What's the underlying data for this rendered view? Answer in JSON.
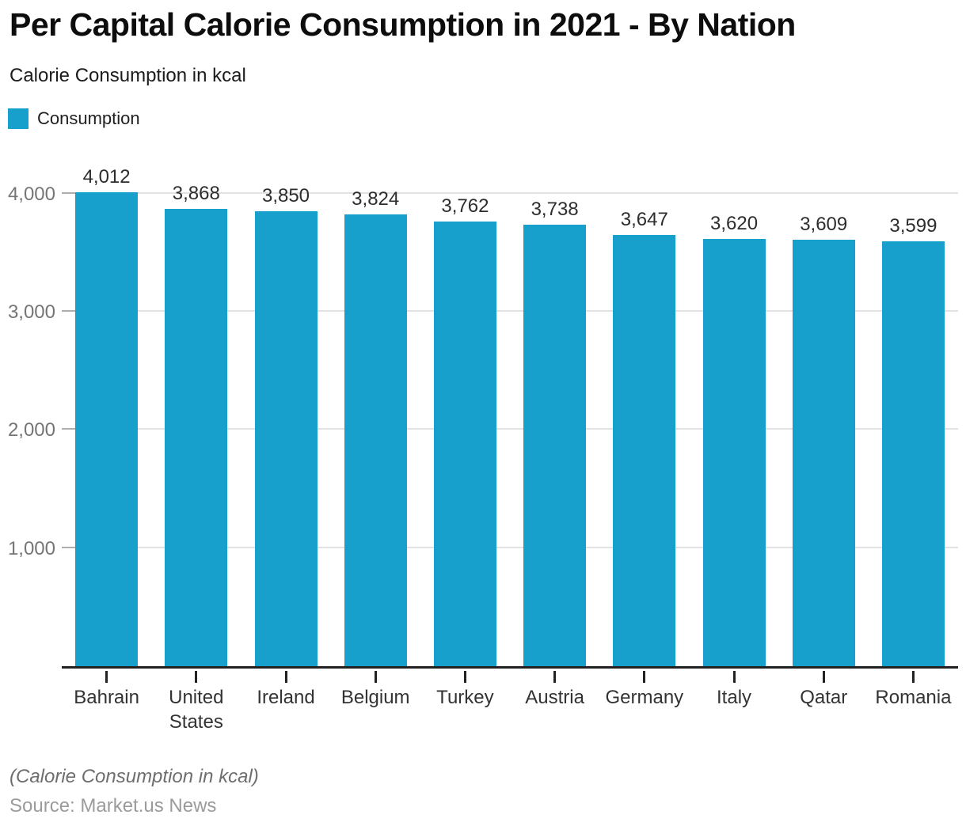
{
  "header": {
    "title": "Per Capital Calorie Consumption in 2021 - By Nation",
    "subtitle": "Calorie Consumption in kcal"
  },
  "legend": {
    "items": [
      {
        "label": "Consumption",
        "color": "#18A0CC"
      }
    ],
    "position": "top-left"
  },
  "footer": {
    "note": "(Calorie Consumption in kcal)",
    "source": "Source: Market.us News"
  },
  "chart_data": {
    "type": "bar",
    "title": "Per Capital Calorie Consumption in 2021 - By Nation",
    "subtitle": "Calorie Consumption in kcal",
    "categories": [
      "Bahrain",
      "United States",
      "Ireland",
      "Belgium",
      "Turkey",
      "Austria",
      "Germany",
      "Italy",
      "Qatar",
      "Romania"
    ],
    "values": [
      4012,
      3868,
      3850,
      3824,
      3762,
      3738,
      3647,
      3620,
      3609,
      3599
    ],
    "value_labels": [
      "4,012",
      "3,868",
      "3,850",
      "3,824",
      "3,762",
      "3,738",
      "3,647",
      "3,620",
      "3,609",
      "3,599"
    ],
    "series_name": "Consumption",
    "xlabel": "",
    "ylabel": "Calorie Consumption in kcal",
    "yticks": [
      1000,
      2000,
      3000,
      4000
    ],
    "ytick_labels": [
      "1,000",
      "2,000",
      "3,000",
      "4,000"
    ],
    "ylim": [
      0,
      4320
    ],
    "grid": true,
    "legend_position": "top-left",
    "bar_color": "#18A0CC"
  }
}
